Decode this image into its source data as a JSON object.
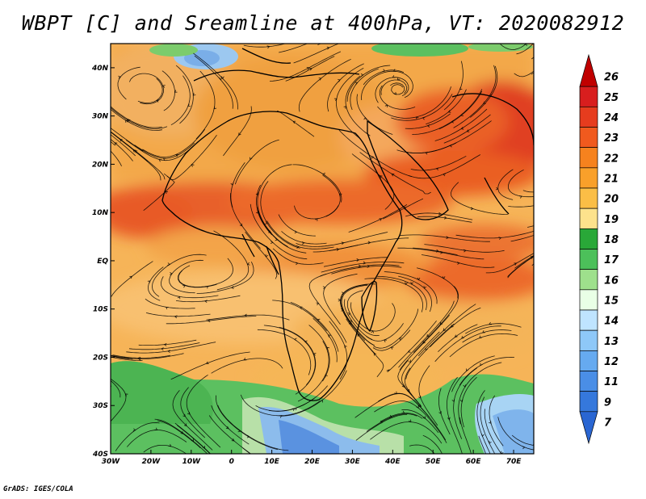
{
  "title": "WBPT [C] and Sreamline at 400hPa, VT: 2020082912",
  "footer": "GrADS: IGES/COLA",
  "map": {
    "lon_range": [
      -30,
      75
    ],
    "lat_range": [
      -40,
      45
    ],
    "x_ticks": [
      "30W",
      "20W",
      "10W",
      "0",
      "10E",
      "20E",
      "30E",
      "40E",
      "50E",
      "60E",
      "70E"
    ],
    "y_ticks": [
      "40N",
      "30N",
      "20N",
      "10N",
      "EQ",
      "10S",
      "20S",
      "30S",
      "40S"
    ],
    "field_regions": [
      {
        "name": "north-africa-band",
        "color": "#f0a040",
        "value": 21
      },
      {
        "name": "sahel-warm-band",
        "color": "#e8602a",
        "value": 22
      },
      {
        "name": "arabia-warm",
        "color": "#e04020",
        "value": 23
      },
      {
        "name": "indian-ocean-warm",
        "color": "#ec6a2c",
        "value": 22
      },
      {
        "name": "southern-africa",
        "color": "#f4b050",
        "value": 20
      },
      {
        "name": "south-atlantic-green",
        "color": "#5cc060",
        "value": 17
      },
      {
        "name": "southern-ocean-blue",
        "color": "#78aee8",
        "value": 13
      },
      {
        "name": "europe-blue-patch",
        "color": "#9cc8f0",
        "value": 14
      }
    ]
  },
  "colorbar": {
    "levels": [
      "26",
      "25",
      "24",
      "23",
      "22",
      "21",
      "20",
      "19",
      "18",
      "17",
      "16",
      "15",
      "14",
      "13",
      "12",
      "11",
      "9",
      "7"
    ],
    "colors": [
      "#c00000",
      "#d81e1e",
      "#e63c1e",
      "#f05a1e",
      "#f6821e",
      "#f9a02a",
      "#fbbe46",
      "#fde28c",
      "#29a838",
      "#4cc05a",
      "#9ee08c",
      "#e9ffe6",
      "#bfe4ff",
      "#8ec8f8",
      "#66aaf0",
      "#4a8ee6",
      "#3578dc",
      "#2a66d2"
    ]
  }
}
